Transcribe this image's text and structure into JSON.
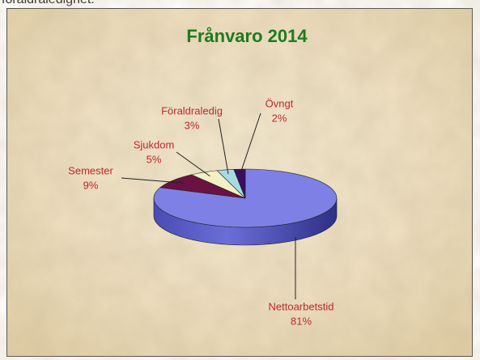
{
  "page_text": "föräldraledighet.",
  "chart_data": {
    "type": "pie",
    "title": "Frånvaro 2014",
    "categories": [
      "Nettoarbetstid",
      "Semester",
      "Sjukdom",
      "Föraldraledig",
      "Övngt"
    ],
    "values": [
      81,
      9,
      5,
      3,
      2
    ],
    "value_labels": [
      "81%",
      "9%",
      "5%",
      "3%",
      "2%"
    ],
    "colors": [
      "#7e80e6",
      "#6a1242",
      "#f2f0c4",
      "#a6dbe4",
      "#3c0d62"
    ],
    "three_d": true
  }
}
